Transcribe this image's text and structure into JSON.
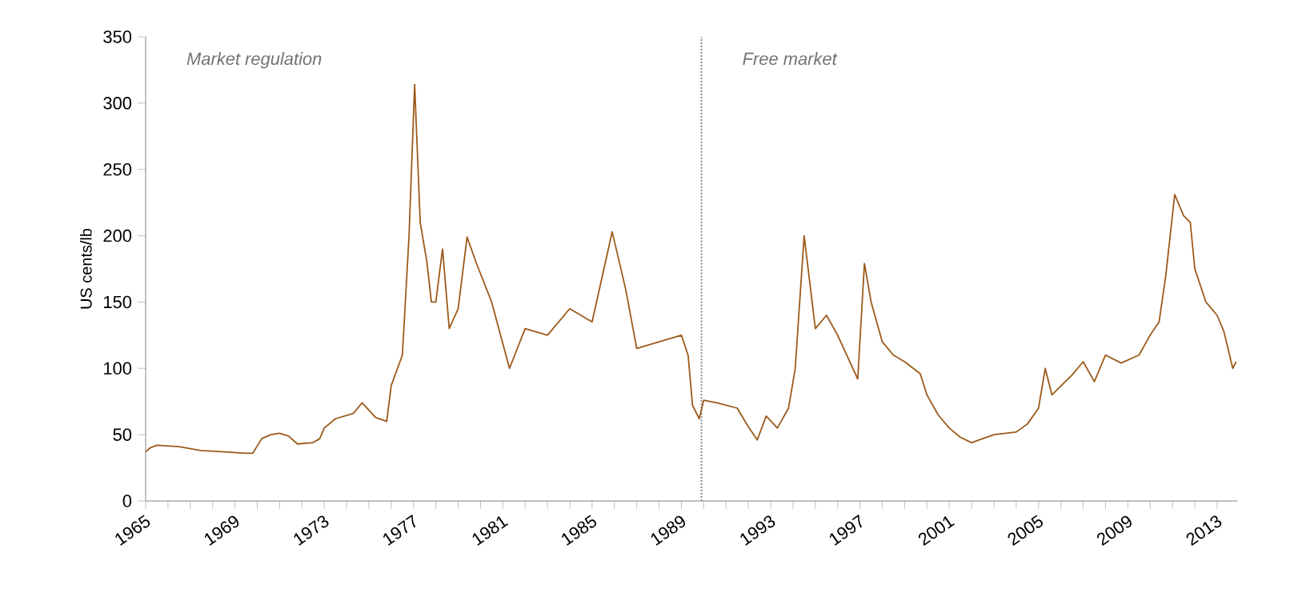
{
  "chart_data": {
    "type": "line",
    "ylabel": "US cents/lb",
    "annotations": [
      "Market regulation",
      "Free market"
    ],
    "x": [
      1965.0,
      1965.2,
      1965.5,
      1966.5,
      1967.5,
      1968.5,
      1969.5,
      1969.8,
      1970.2,
      1970.6,
      1971.0,
      1971.4,
      1971.8,
      1972.5,
      1972.8,
      1973.0,
      1973.5,
      1974.3,
      1974.7,
      1975.3,
      1975.8,
      1976.0,
      1976.5,
      1976.8,
      1977.05,
      1977.3,
      1977.6,
      1977.8,
      1978.0,
      1978.3,
      1978.6,
      1979.0,
      1979.4,
      1979.8,
      1980.5,
      1981.3,
      1982.0,
      1983.0,
      1984.0,
      1985.0,
      1985.9,
      1986.5,
      1987.0,
      1988.0,
      1989.0,
      1989.3,
      1989.5,
      1989.8,
      1990.0,
      1990.6,
      1991.5,
      1992.0,
      1992.4,
      1992.8,
      1993.3,
      1993.8,
      1994.1,
      1994.5,
      1995.0,
      1995.5,
      1996.0,
      1996.9,
      1997.2,
      1997.5,
      1998.0,
      1998.5,
      1999.0,
      1999.7,
      2000.0,
      2000.5,
      2001.0,
      2001.5,
      2002.0,
      2003.0,
      2004.0,
      2004.5,
      2005.0,
      2005.3,
      2005.6,
      2006.5,
      2007.0,
      2007.5,
      2008.0,
      2008.7,
      2009.5,
      2010.0,
      2010.4,
      2010.7,
      2011.1,
      2011.5,
      2011.8,
      2012.0,
      2012.2,
      2012.5,
      2013.0,
      2013.3,
      2013.7,
      2013.85
    ],
    "series": [
      {
        "color": "#9c5a1a",
        "values": [
          37,
          40,
          42,
          41,
          38,
          37,
          36,
          36,
          47,
          50,
          51,
          49,
          43,
          44,
          47,
          55,
          62,
          66,
          74,
          63,
          60,
          87,
          110,
          200,
          314,
          210,
          180,
          150,
          150,
          190,
          130,
          145,
          199,
          180,
          150,
          100,
          130,
          125,
          145,
          135,
          203,
          160,
          115,
          120,
          125,
          110,
          72,
          62,
          76,
          74,
          70,
          56,
          46,
          64,
          55,
          70,
          100,
          200,
          130,
          140,
          125,
          92,
          179,
          150,
          120,
          110,
          105,
          96,
          80,
          65,
          55,
          48,
          44,
          50,
          52,
          58,
          70,
          100,
          80,
          95,
          105,
          90,
          110,
          104,
          110,
          125,
          135,
          170,
          231,
          215,
          210,
          175,
          165,
          150,
          140,
          128,
          100,
          105
        ]
      }
    ],
    "xlim": [
      1965,
      2013.9
    ],
    "xticks": [
      {
        "value": 1965,
        "label": "1965"
      },
      {
        "value": 1966,
        "label": null
      },
      {
        "value": 1967,
        "label": null
      },
      {
        "value": 1968,
        "label": null
      },
      {
        "value": 1969,
        "label": "1969"
      },
      {
        "value": 1970,
        "label": null
      },
      {
        "value": 1971,
        "label": null
      },
      {
        "value": 1972,
        "label": null
      },
      {
        "value": 1973,
        "label": "1973"
      },
      {
        "value": 1974,
        "label": null
      },
      {
        "value": 1975,
        "label": null
      },
      {
        "value": 1976,
        "label": null
      },
      {
        "value": 1977,
        "label": "1977"
      },
      {
        "value": 1978,
        "label": null
      },
      {
        "value": 1979,
        "label": null
      },
      {
        "value": 1980,
        "label": null
      },
      {
        "value": 1981,
        "label": "1981"
      },
      {
        "value": 1982,
        "label": null
      },
      {
        "value": 1983,
        "label": null
      },
      {
        "value": 1984,
        "label": null
      },
      {
        "value": 1985,
        "label": "1985"
      },
      {
        "value": 1986,
        "label": null
      },
      {
        "value": 1987,
        "label": null
      },
      {
        "value": 1988,
        "label": null
      },
      {
        "value": 1989,
        "label": "1989"
      },
      {
        "value": 1990,
        "label": null
      },
      {
        "value": 1991,
        "label": null
      },
      {
        "value": 1992,
        "label": null
      },
      {
        "value": 1993,
        "label": "1993"
      },
      {
        "value": 1994,
        "label": null
      },
      {
        "value": 1995,
        "label": null
      },
      {
        "value": 1996,
        "label": null
      },
      {
        "value": 1997,
        "label": "1997"
      },
      {
        "value": 1998,
        "label": null
      },
      {
        "value": 1999,
        "label": null
      },
      {
        "value": 2000,
        "label": null
      },
      {
        "value": 2001,
        "label": "2001"
      },
      {
        "value": 2002,
        "label": null
      },
      {
        "value": 2003,
        "label": null
      },
      {
        "value": 2004,
        "label": null
      },
      {
        "value": 2005,
        "label": "2005"
      },
      {
        "value": 2006,
        "label": null
      },
      {
        "value": 2007,
        "label": null
      },
      {
        "value": 2008,
        "label": null
      },
      {
        "value": 2009,
        "label": "2009"
      },
      {
        "value": 2010,
        "label": null
      },
      {
        "value": 2011,
        "label": null
      },
      {
        "value": 2012,
        "label": null
      },
      {
        "value": 2013,
        "label": "2013"
      }
    ],
    "ylim": [
      0,
      350
    ],
    "yticks": [
      0,
      50,
      100,
      150,
      200,
      250,
      300,
      350
    ],
    "ref_lines": [
      {
        "axis": "x",
        "value": 1989.9,
        "color": "#888888",
        "line_style": "dotted"
      }
    ],
    "marker": "none",
    "line_style": "solid"
  }
}
